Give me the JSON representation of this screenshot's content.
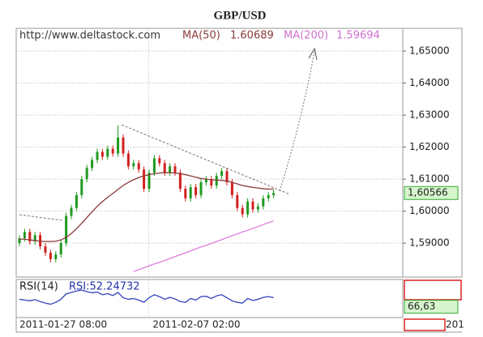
{
  "chart_data": [
    {
      "type": "candlestick",
      "title": "GBP/USD",
      "source": "http://www.deltastock.com",
      "categories": [
        "2011-01-27 08:00",
        null,
        null,
        null,
        null,
        null,
        null,
        null,
        null,
        null,
        null,
        null,
        null,
        null,
        null,
        null,
        null,
        null,
        null,
        null,
        null,
        null,
        null,
        null,
        null,
        null,
        "2011-02-07 02:00",
        null,
        null,
        null,
        null,
        null,
        null,
        null,
        null,
        null,
        null,
        null,
        null,
        null,
        null,
        null,
        null,
        null,
        null,
        null,
        null,
        null,
        null,
        null
      ],
      "open": [
        1.59,
        1.5915,
        1.5935,
        1.5905,
        1.5925,
        1.589,
        1.587,
        1.585,
        1.5865,
        1.59,
        1.5985,
        1.601,
        1.605,
        1.61,
        1.6135,
        1.616,
        1.6185,
        1.617,
        1.6195,
        1.618,
        1.623,
        1.618,
        1.614,
        1.615,
        1.613,
        1.607,
        1.612,
        1.6165,
        1.615,
        1.612,
        1.614,
        1.612,
        1.607,
        1.604,
        1.6075,
        1.605,
        1.609,
        1.61,
        1.608,
        1.611,
        1.6125,
        1.609,
        1.605,
        1.601,
        1.599,
        1.603,
        1.6005,
        1.6015,
        1.604,
        1.605
      ],
      "high": [
        1.5925,
        1.5945,
        1.5945,
        1.5935,
        1.5935,
        1.59,
        1.588,
        1.5875,
        1.591,
        1.5995,
        1.602,
        1.606,
        1.611,
        1.6145,
        1.617,
        1.6195,
        1.6195,
        1.6205,
        1.6205,
        1.6268,
        1.624,
        1.619,
        1.616,
        1.616,
        1.614,
        1.613,
        1.6175,
        1.6175,
        1.616,
        1.615,
        1.615,
        1.613,
        1.608,
        1.6085,
        1.6085,
        1.61,
        1.611,
        1.611,
        1.612,
        1.6135,
        1.6135,
        1.61,
        1.606,
        1.602,
        1.604,
        1.604,
        1.6025,
        1.605,
        1.606,
        1.6067
      ],
      "low": [
        1.589,
        1.5905,
        1.5895,
        1.5895,
        1.588,
        1.586,
        1.584,
        1.584,
        1.5855,
        1.589,
        1.5975,
        1.6,
        1.604,
        1.609,
        1.6125,
        1.615,
        1.616,
        1.616,
        1.617,
        1.617,
        1.617,
        1.613,
        1.613,
        1.612,
        1.606,
        1.606,
        1.611,
        1.614,
        1.611,
        1.611,
        1.611,
        1.606,
        1.603,
        1.603,
        1.604,
        1.604,
        1.608,
        1.607,
        1.607,
        1.61,
        1.608,
        1.604,
        1.6,
        1.598,
        1.598,
        1.5995,
        1.5995,
        1.6005,
        1.603,
        1.604
      ],
      "close": [
        1.5915,
        1.5935,
        1.5905,
        1.5925,
        1.589,
        1.587,
        1.585,
        1.5865,
        1.59,
        1.5985,
        1.601,
        1.605,
        1.61,
        1.6135,
        1.616,
        1.6185,
        1.617,
        1.6195,
        1.618,
        1.623,
        1.618,
        1.614,
        1.615,
        1.613,
        1.607,
        1.612,
        1.6165,
        1.615,
        1.612,
        1.614,
        1.612,
        1.607,
        1.604,
        1.6075,
        1.605,
        1.609,
        1.61,
        1.608,
        1.611,
        1.6125,
        1.609,
        1.605,
        1.601,
        1.599,
        1.603,
        1.6005,
        1.6015,
        1.604,
        1.605,
        1.60566
      ],
      "up_color": "#1f9a1f",
      "down_color": "#d22020",
      "series": [
        {
          "name": "MA(50)",
          "color": "#8b3a3a",
          "last": 1.60689,
          "values": [
            1.5913,
            1.5912,
            1.591,
            1.5908,
            1.5906,
            1.5905,
            1.5905,
            1.5906,
            1.591,
            1.5918,
            1.593,
            1.5945,
            1.5962,
            1.598,
            1.5998,
            1.6015,
            1.603,
            1.6043,
            1.6055,
            1.6068,
            1.608,
            1.609,
            1.6098,
            1.6105,
            1.611,
            1.6114,
            1.6117,
            1.6119,
            1.612,
            1.612,
            1.6119,
            1.6117,
            1.6114,
            1.611,
            1.6106,
            1.6102,
            1.61,
            1.6098,
            1.6097,
            1.6096,
            1.6094,
            1.609,
            1.6085,
            1.608,
            1.6077,
            1.6074,
            1.6072,
            1.607,
            1.6069,
            1.60689
          ]
        },
        {
          "name": "MA(200)",
          "color": "#e07ee0",
          "last": 1.59694,
          "values": [
            null,
            null,
            null,
            null,
            null,
            null,
            null,
            null,
            null,
            null,
            null,
            null,
            null,
            null,
            null,
            null,
            null,
            null,
            null,
            null,
            null,
            null,
            1.5811,
            1.5817,
            1.5823,
            1.5829,
            1.5835,
            1.584,
            1.5846,
            1.5852,
            1.5858,
            1.5864,
            1.587,
            1.5876,
            1.5882,
            1.5888,
            1.5893,
            1.5899,
            1.5905,
            1.5911,
            1.5917,
            1.5923,
            1.5929,
            1.5935,
            1.594,
            1.5946,
            1.5952,
            1.5958,
            1.5964,
            1.59694
          ]
        }
      ],
      "ylim": [
        1.5794,
        1.6571
      ],
      "yticks": [
        {
          "value": 1.59,
          "label": "1,59000"
        },
        {
          "value": 1.6,
          "label": "1,60000"
        },
        {
          "value": 1.61,
          "label": "1,61000"
        },
        {
          "value": 1.62,
          "label": "1,62000"
        },
        {
          "value": 1.63,
          "label": "1,63000"
        },
        {
          "value": 1.64,
          "label": "1,64000"
        },
        {
          "value": 1.65,
          "label": "1,65000"
        }
      ],
      "grid": true,
      "last_price": {
        "value": 1.60566,
        "label": "1,60566"
      },
      "corner_text": "201"
    },
    {
      "type": "line",
      "title": "RSI(14)",
      "last_label": "RSI:52.24732",
      "series": [
        {
          "color": "#3344bb",
          "values": [
            48,
            46,
            44,
            47,
            42,
            38,
            35,
            40,
            48,
            62,
            66,
            70,
            72,
            68,
            65,
            67,
            60,
            63,
            58,
            66,
            52,
            48,
            50,
            46,
            40,
            52,
            60,
            55,
            48,
            53,
            49,
            42,
            40,
            50,
            46,
            55,
            56,
            50,
            57,
            60,
            52,
            44,
            40,
            38,
            50,
            45,
            48,
            53,
            55,
            52.24732
          ]
        }
      ],
      "ylim": [
        0,
        100
      ],
      "scale_marker": {
        "value": 66.63,
        "label": "66,63"
      }
    }
  ]
}
